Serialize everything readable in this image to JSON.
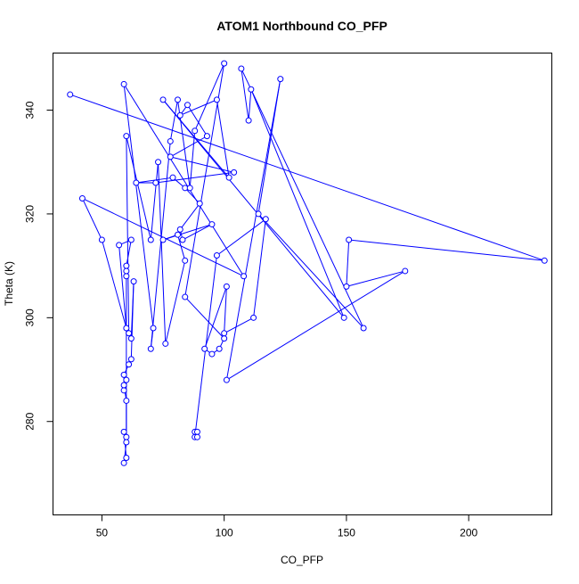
{
  "chart_data": {
    "type": "line",
    "title": "ATOM1 Northbound CO_PFP",
    "xlabel": "CO_PFP",
    "ylabel": "Theta (K)",
    "xlim": [
      30,
      234
    ],
    "ylim": [
      262,
      351
    ],
    "x_ticks": [
      50,
      100,
      150,
      200
    ],
    "y_ticks": [
      280,
      300,
      320,
      340
    ],
    "x_tick_labels": [
      "50",
      "100",
      "150",
      "200"
    ],
    "y_tick_labels": [
      "280",
      "300",
      "320",
      "340"
    ],
    "grid": false,
    "legend": "none",
    "series": [
      {
        "color": "#0000ff",
        "marker": "open-circle",
        "points": [
          [
            37,
            343
          ],
          [
            231,
            311
          ],
          [
            151,
            315
          ],
          [
            150,
            306
          ],
          [
            174,
            309
          ],
          [
            101,
            288
          ],
          [
            123,
            346
          ],
          [
            114,
            320
          ],
          [
            157,
            298
          ],
          [
            107,
            348
          ],
          [
            110,
            338
          ],
          [
            111,
            344
          ],
          [
            149,
            300
          ],
          [
            75,
            342
          ],
          [
            102,
            327
          ],
          [
            97,
            342
          ],
          [
            82,
            339
          ],
          [
            85,
            341
          ],
          [
            93,
            335
          ],
          [
            78,
            331
          ],
          [
            104,
            328
          ],
          [
            72,
            326
          ],
          [
            64,
            326
          ],
          [
            79,
            327
          ],
          [
            84,
            325
          ],
          [
            90,
            322
          ],
          [
            82,
            317
          ],
          [
            83,
            315
          ],
          [
            95,
            318
          ],
          [
            75,
            315
          ],
          [
            81,
            316
          ],
          [
            84,
            311
          ],
          [
            76,
            295
          ],
          [
            73,
            330
          ],
          [
            70,
            315
          ],
          [
            60,
            335
          ],
          [
            61,
            297
          ],
          [
            62,
            296
          ],
          [
            63,
            307
          ],
          [
            62,
            292
          ],
          [
            61,
            291
          ],
          [
            59,
            289
          ],
          [
            59,
            286
          ],
          [
            60,
            288
          ],
          [
            59,
            287
          ],
          [
            60,
            284
          ],
          [
            60,
            277
          ],
          [
            59,
            278
          ],
          [
            60,
            273
          ],
          [
            59,
            272
          ],
          [
            60,
            276
          ],
          [
            60,
            308
          ],
          [
            60,
            309
          ],
          [
            60,
            310
          ],
          [
            62,
            315
          ],
          [
            57,
            314
          ],
          [
            60,
            298
          ],
          [
            50,
            315
          ],
          [
            42,
            323
          ],
          [
            108,
            308
          ],
          [
            59,
            345
          ],
          [
            71,
            298
          ],
          [
            70,
            294
          ],
          [
            78,
            334
          ],
          [
            81,
            342
          ],
          [
            86,
            325
          ],
          [
            88,
            336
          ],
          [
            100,
            349
          ],
          [
            84,
            304
          ],
          [
            100,
            296
          ],
          [
            98,
            294
          ],
          [
            95,
            293
          ],
          [
            92,
            294
          ],
          [
            101,
            306
          ],
          [
            100,
            297
          ],
          [
            112,
            300
          ],
          [
            117,
            319
          ],
          [
            97,
            312
          ],
          [
            88,
            277
          ],
          [
            88,
            278
          ],
          [
            89,
            278
          ],
          [
            89,
            277
          ]
        ]
      }
    ]
  }
}
